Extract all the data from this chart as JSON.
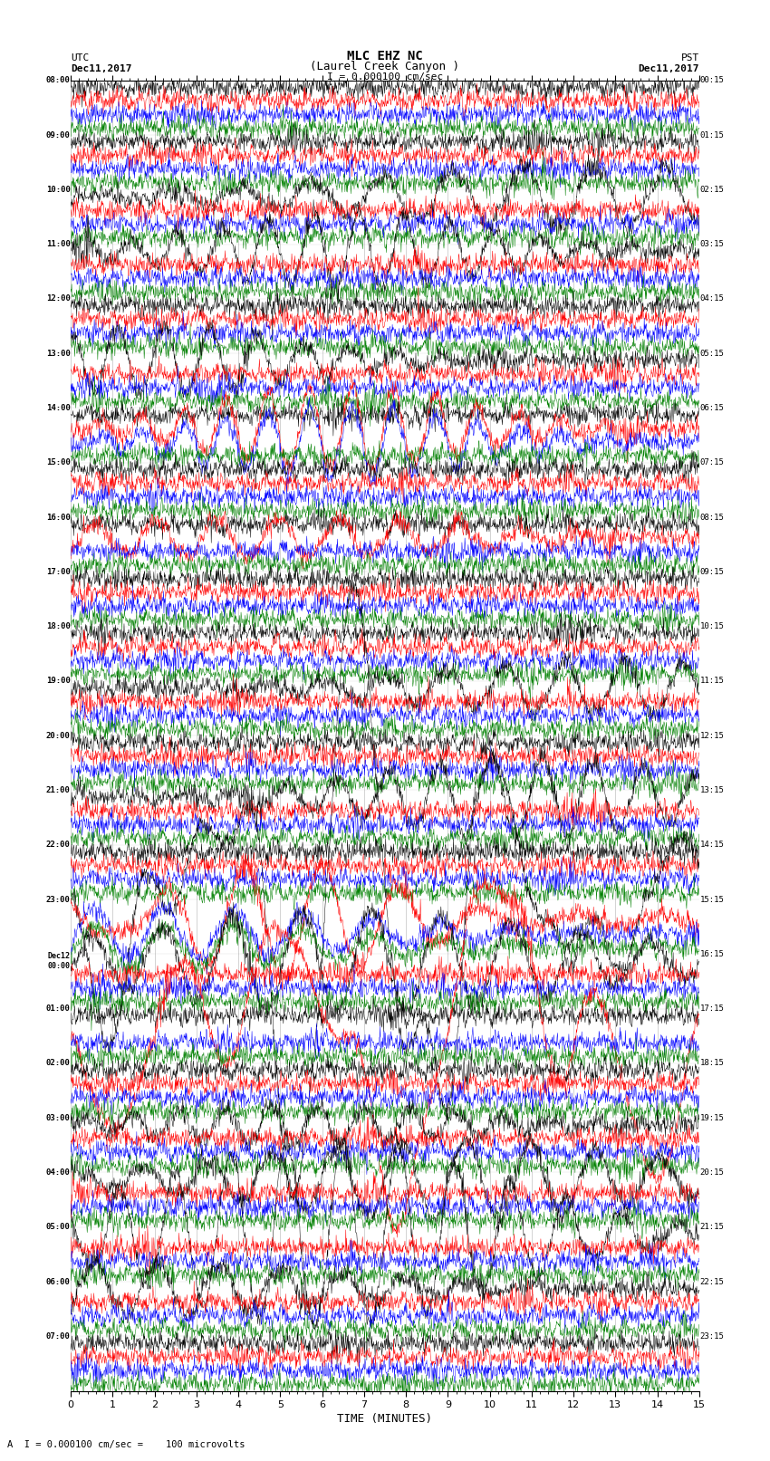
{
  "title_line1": "MLC EHZ NC",
  "title_line2": "(Laurel Creek Canyon )",
  "title_line3": "I = 0.000100 cm/sec",
  "utc_label": "UTC",
  "utc_date": "Dec11,2017",
  "pst_label": "PST",
  "pst_date": "Dec11,2017",
  "xlabel": "TIME (MINUTES)",
  "footer": "A  I = 0.000100 cm/sec =    100 microvolts",
  "xlim": [
    0,
    15
  ],
  "xticks": [
    0,
    1,
    2,
    3,
    4,
    5,
    6,
    7,
    8,
    9,
    10,
    11,
    12,
    13,
    14,
    15
  ],
  "left_times": [
    "08:00",
    "",
    "",
    "",
    "09:00",
    "",
    "",
    "",
    "10:00",
    "",
    "",
    "",
    "11:00",
    "",
    "",
    "",
    "12:00",
    "",
    "",
    "",
    "13:00",
    "",
    "",
    "",
    "14:00",
    "",
    "",
    "",
    "15:00",
    "",
    "",
    "",
    "16:00",
    "",
    "",
    "",
    "17:00",
    "",
    "",
    "",
    "18:00",
    "",
    "",
    "",
    "19:00",
    "",
    "",
    "",
    "20:00",
    "",
    "",
    "",
    "21:00",
    "",
    "",
    "",
    "22:00",
    "",
    "",
    "",
    "23:00",
    "",
    "",
    "",
    "Dec12\n00:00",
    "",
    "",
    "",
    "01:00",
    "",
    "",
    "",
    "02:00",
    "",
    "",
    "",
    "03:00",
    "",
    "",
    "",
    "04:00",
    "",
    "",
    "",
    "05:00",
    "",
    "",
    "",
    "06:00",
    "",
    "",
    "",
    "07:00",
    "",
    "",
    ""
  ],
  "right_times": [
    "00:15",
    "",
    "",
    "",
    "01:15",
    "",
    "",
    "",
    "02:15",
    "",
    "",
    "",
    "03:15",
    "",
    "",
    "",
    "04:15",
    "",
    "",
    "",
    "05:15",
    "",
    "",
    "",
    "06:15",
    "",
    "",
    "",
    "07:15",
    "",
    "",
    "",
    "08:15",
    "",
    "",
    "",
    "09:15",
    "",
    "",
    "",
    "10:15",
    "",
    "",
    "",
    "11:15",
    "",
    "",
    "",
    "12:15",
    "",
    "",
    "",
    "13:15",
    "",
    "",
    "",
    "14:15",
    "",
    "",
    "",
    "15:15",
    "",
    "",
    "",
    "16:15",
    "",
    "",
    "",
    "17:15",
    "",
    "",
    "",
    "18:15",
    "",
    "",
    "",
    "19:15",
    "",
    "",
    "",
    "20:15",
    "",
    "",
    "",
    "21:15",
    "",
    "",
    "",
    "22:15",
    "",
    "",
    "",
    "23:15",
    "",
    "",
    ""
  ],
  "trace_colors": [
    "black",
    "red",
    "blue",
    "green"
  ],
  "n_rows": 96,
  "n_cols": 1500,
  "bg_color": "white",
  "figsize": [
    8.5,
    16.13
  ],
  "dpi": 100
}
